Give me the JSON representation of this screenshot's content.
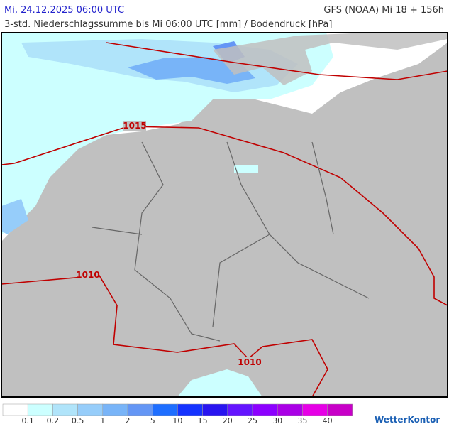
{
  "header": {
    "date": "Mi, 24.12.2025 06:00 UTC",
    "model": "GFS (NOAA) Mi 18 + 156h",
    "subtitle": "3-std. Niederschlagssumme bis Mi 06:00 UTC [mm] / Bodendruck [hPa]"
  },
  "map": {
    "isobar_labels": [
      "1015",
      "1010",
      "1010"
    ]
  },
  "legend": {
    "colors": [
      "#ffffff",
      "#ccffff",
      "#b0e4fa",
      "#96cdfa",
      "#78b4f8",
      "#6496f5",
      "#1e6eff",
      "#1432ff",
      "#2814f0",
      "#6414ff",
      "#8c00ff",
      "#aa00e6",
      "#e600e6",
      "#c800c8"
    ],
    "labels": [
      "0.1",
      "0.2",
      "0.5",
      "1",
      "2",
      "5",
      "10",
      "15",
      "20",
      "25",
      "30",
      "35",
      "40"
    ]
  },
  "brand": "WetterKontor"
}
